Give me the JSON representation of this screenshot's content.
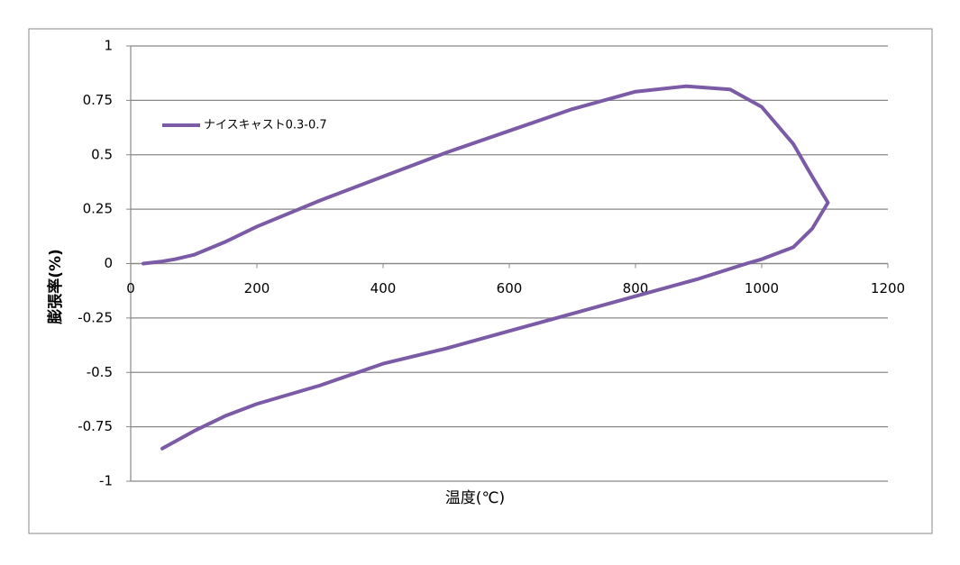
{
  "chart_data": {
    "type": "line",
    "x_label": "温度(℃)",
    "y_label": "膨張率(%)",
    "xlim": [
      0,
      1200
    ],
    "xticks": [
      0,
      200,
      400,
      600,
      800,
      1000,
      1200
    ],
    "ylim": [
      -1,
      1
    ],
    "yticks": [
      -1,
      -0.75,
      -0.5,
      -0.25,
      0,
      0.25,
      0.5,
      0.75,
      1
    ],
    "grid": true,
    "legend": "upper-left",
    "series": [
      {
        "name": "ナイスキャスト0.3-0.7",
        "color": "#7b5aa6",
        "x": [
          20,
          50,
          70,
          100,
          150,
          200,
          300,
          400,
          500,
          600,
          700,
          800,
          880,
          950,
          1000,
          1050,
          1080,
          1105,
          1080,
          1050,
          1000,
          976,
          900,
          800,
          700,
          600,
          500,
          400,
          300,
          200,
          150,
          100,
          50
        ],
        "values": [
          0,
          0.01,
          0.02,
          0.04,
          0.1,
          0.17,
          0.29,
          0.4,
          0.51,
          0.61,
          0.71,
          0.79,
          0.815,
          0.8,
          0.72,
          0.55,
          0.4,
          0.28,
          0.16,
          0.075,
          0.02,
          0,
          -0.07,
          -0.15,
          -0.23,
          -0.31,
          -0.39,
          -0.46,
          -0.56,
          -0.645,
          -0.7,
          -0.77,
          -0.85
        ]
      }
    ]
  }
}
